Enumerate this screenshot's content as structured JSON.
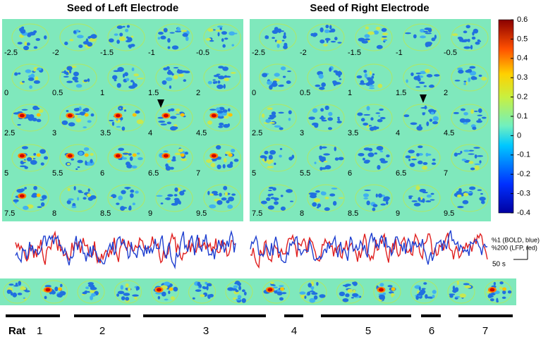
{
  "panels": [
    {
      "title": "Seed of Left Electrode",
      "lags": [
        "-2.5",
        "-2",
        "-1.5",
        "-1",
        "-0.5",
        "0",
        "0.5",
        "1",
        "1.5",
        "2",
        "2.5",
        "3",
        "3.5",
        "4",
        "4.5",
        "5",
        "5.5",
        "6",
        "6.5",
        "7",
        "7.5",
        "8",
        "8.5",
        "9",
        "9.5"
      ]
    },
    {
      "title": "Seed of Right Electrode",
      "lags": [
        "-2.5",
        "-2",
        "-1.5",
        "-1",
        "-0.5",
        "0",
        "0.5",
        "1",
        "1.5",
        "2",
        "2.5",
        "3",
        "3.5",
        "4",
        "4.5",
        "5",
        "5.5",
        "6",
        "6.5",
        "7",
        "7.5",
        "8",
        "8.5",
        "9",
        "9.5"
      ]
    }
  ],
  "colorbar": {
    "lim": [
      -0.4,
      0.6
    ],
    "ticks": [
      0.6,
      0.5,
      0.4,
      0.3,
      0.2,
      0.1,
      0,
      -0.1,
      -0.2,
      -0.3,
      -0.4
    ]
  },
  "scale": {
    "bold": "%1 (BOLD, blue)",
    "lfp": "%200 (LFP, red)",
    "time": "50 s"
  },
  "rats": {
    "prefix": "Rat",
    "labels": [
      "1",
      "2",
      "3",
      "4",
      "5",
      "6",
      "7"
    ]
  }
}
